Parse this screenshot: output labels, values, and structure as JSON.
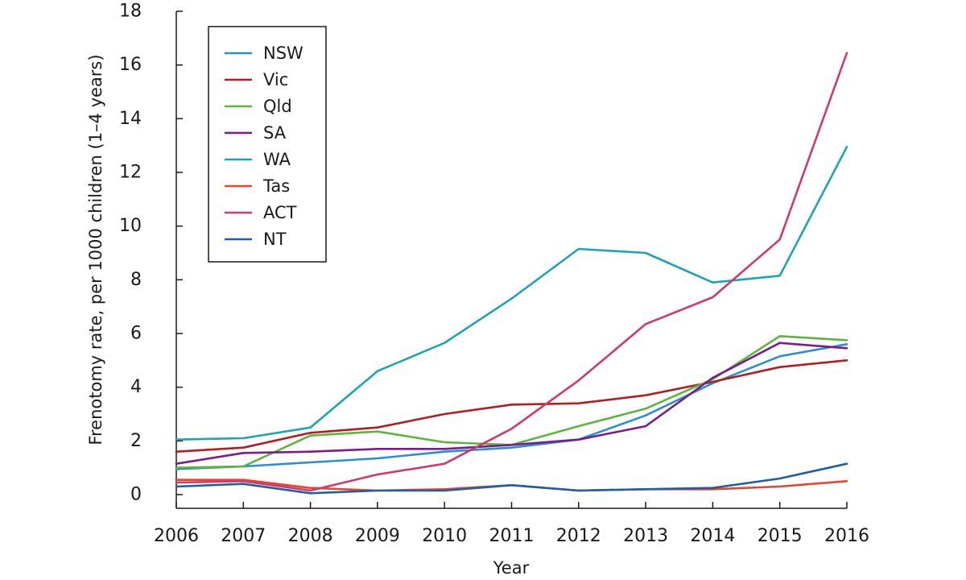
{
  "chart_data": {
    "type": "line",
    "title": "",
    "xlabel": "Year",
    "ylabel": "Frenotomy rate, per 1000 children (1–4 years)",
    "x": [
      "2006",
      "2007",
      "2008",
      "2009",
      "2010",
      "2011",
      "2012",
      "2013",
      "2014",
      "2015",
      "2016"
    ],
    "xlim": [
      2006,
      2016
    ],
    "ylim": [
      0,
      18
    ],
    "yticks": [
      "0",
      "2",
      "4",
      "6",
      "8",
      "10",
      "12",
      "14",
      "16",
      "18"
    ],
    "grid": false,
    "legend_position": "top-left",
    "series": [
      {
        "name": "NSW",
        "color": "#2a8fcf",
        "values": [
          0.95,
          1.05,
          1.2,
          1.35,
          1.6,
          1.75,
          2.05,
          2.95,
          4.15,
          5.15,
          5.6
        ]
      },
      {
        "name": "Vic",
        "color": "#b01e23",
        "values": [
          1.6,
          1.75,
          2.3,
          2.5,
          3.0,
          3.35,
          3.4,
          3.7,
          4.2,
          4.75,
          5.0
        ]
      },
      {
        "name": "Qld",
        "color": "#5cb53f",
        "values": [
          1.0,
          1.05,
          2.2,
          2.35,
          1.95,
          1.85,
          2.55,
          3.2,
          4.3,
          5.9,
          5.75
        ]
      },
      {
        "name": "SA",
        "color": "#7b1c8c",
        "values": [
          1.15,
          1.55,
          1.6,
          1.7,
          1.7,
          1.85,
          2.05,
          2.55,
          4.35,
          5.65,
          5.45
        ]
      },
      {
        "name": "WA",
        "color": "#1ba5b4",
        "values": [
          2.05,
          2.1,
          2.5,
          4.6,
          5.65,
          7.3,
          9.15,
          9.0,
          7.9,
          8.15,
          12.95
        ]
      },
      {
        "name": "Tas",
        "color": "#e8452a",
        "values": [
          0.55,
          0.55,
          0.25,
          0.15,
          0.2,
          0.35,
          0.15,
          0.2,
          0.2,
          0.3,
          0.5
        ]
      },
      {
        "name": "ACT",
        "color": "#d1396b",
        "values": [
          0.45,
          0.5,
          0.15,
          0.75,
          1.15,
          2.45,
          4.25,
          6.35,
          7.35,
          9.5,
          16.45
        ]
      },
      {
        "name": "NT",
        "color": "#1f5fa0",
        "values": [
          0.3,
          0.4,
          0.05,
          0.15,
          0.15,
          0.35,
          0.15,
          0.2,
          0.25,
          0.6,
          1.15
        ]
      }
    ]
  }
}
